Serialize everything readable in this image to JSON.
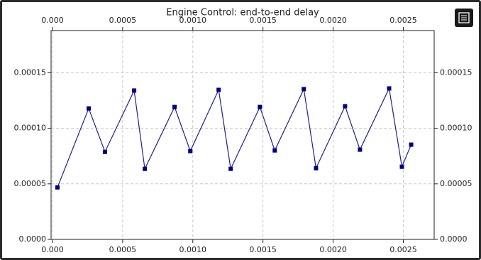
{
  "chart_data": {
    "type": "line",
    "title": "Engine Control: end-to-end delay",
    "x": [
      3.54e-05,
      0.000258,
      0.000374,
      0.000582,
      0.000658,
      0.00087,
      0.000982,
      0.001184,
      0.00127,
      0.001478,
      0.001584,
      0.001791,
      0.001878,
      0.002085,
      0.002191,
      0.002399,
      0.00249,
      0.002556
    ],
    "series": [
      {
        "color": "#1f1f8f",
        "marker_color": "#000080",
        "values": [
          4.68e-05,
          0.0001179,
          7.88e-05,
          0.000134,
          6.35e-05,
          0.0001192,
          7.95e-05,
          0.0001346,
          6.35e-05,
          0.0001192,
          8.01e-05,
          0.0001353,
          6.41e-05,
          0.0001199,
          8.08e-05,
          0.0001359,
          6.54e-05,
          8.53e-05
        ]
      }
    ],
    "xlim": [
      -1e-05,
      0.00272
    ],
    "ylim": [
      0,
      0.000188
    ],
    "xticks": [
      {
        "value": 0,
        "label": "0.000"
      },
      0.0005,
      {
        "value": 0.001,
        "label": "0.0010"
      },
      0.0015,
      {
        "value": 0.002,
        "label": "0.0020"
      },
      0.0025
    ],
    "yticks": [
      {
        "value": 0,
        "label": "0.0000"
      },
      5e-05,
      {
        "value": 0.0001,
        "label": "0.00010"
      },
      0.00015
    ],
    "grid": true
  }
}
